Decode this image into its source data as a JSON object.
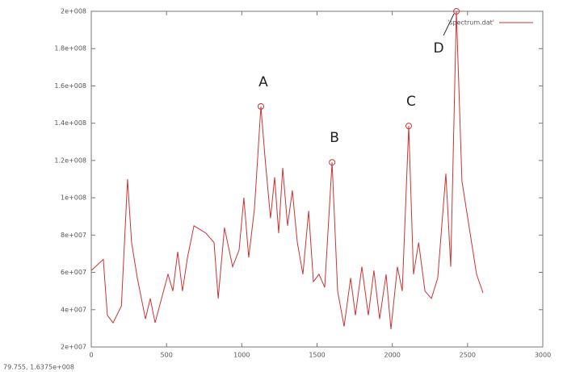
{
  "chart_data": {
    "type": "line",
    "status_text": "79.755, 1.6375e+008",
    "xlim": [
      0,
      3000
    ],
    "xticks": [
      0,
      500,
      1000,
      1500,
      2000,
      2500,
      3000
    ],
    "ylim": [
      20000000,
      200000000
    ],
    "yticks": [
      {
        "value": 20000000,
        "label": "2e+007"
      },
      {
        "value": 40000000,
        "label": "4e+007"
      },
      {
        "value": 60000000,
        "label": "6e+007"
      },
      {
        "value": 80000000,
        "label": "8e+007"
      },
      {
        "value": 100000000,
        "label": "1e+008"
      },
      {
        "value": 120000000,
        "label": "1.2e+008"
      },
      {
        "value": 140000000,
        "label": "1.4e+008"
      },
      {
        "value": 160000000,
        "label": "1.6e+008"
      },
      {
        "value": 180000000,
        "label": "1.8e+008"
      },
      {
        "value": 200000000,
        "label": "2e+008"
      }
    ],
    "legend_position": "top-right",
    "series": [
      {
        "name": "'spectrum.dat'",
        "color": "#cc3333",
        "x": [
          0,
          80,
          107,
          145,
          200,
          241,
          268,
          306,
          360,
          392,
          424,
          467,
          510,
          542,
          574,
          606,
          639,
          682,
          762,
          816,
          843,
          885,
          939,
          982,
          1014,
          1046,
          1084,
          1127,
          1154,
          1191,
          1218,
          1245,
          1272,
          1304,
          1336,
          1369,
          1406,
          1444,
          1476,
          1513,
          1551,
          1600,
          1637,
          1680,
          1723,
          1755,
          1798,
          1841,
          1878,
          1916,
          1959,
          1991,
          2034,
          2066,
          2109,
          2141,
          2175,
          2217,
          2260,
          2302,
          2356,
          2388,
          2426,
          2463,
          2517,
          2560,
          2603
        ],
        "values": [
          61000000,
          67000000,
          37000000,
          33000000,
          42000000,
          110000000,
          76000000,
          57000000,
          35000000,
          46000000,
          33000000,
          46000000,
          59000000,
          50000000,
          71000000,
          50000000,
          68000000,
          85000000,
          81000000,
          76000000,
          46000000,
          84000000,
          63000000,
          72000000,
          100000000,
          68000000,
          94000000,
          149000000,
          122000000,
          89000000,
          111000000,
          81000000,
          116000000,
          85000000,
          104000000,
          76000000,
          59000000,
          93000000,
          55000000,
          59000000,
          52000000,
          119000000,
          50000000,
          31000000,
          57000000,
          37000000,
          63000000,
          37000000,
          61000000,
          35000000,
          59000000,
          29500000,
          63000000,
          50000000,
          138500000,
          59000000,
          76000000,
          50000000,
          46000000,
          57000000,
          113000000,
          63000000,
          200000000,
          109000000,
          81000000,
          59000000,
          49000000
        ]
      }
    ],
    "annotations": [
      {
        "label": "A",
        "x": 1127,
        "y": 149000000
      },
      {
        "label": "B",
        "x": 1600,
        "y": 119000000
      },
      {
        "label": "C",
        "x": 2109,
        "y": 138500000
      },
      {
        "label": "D",
        "x": 2426,
        "y": 200000000
      }
    ]
  }
}
